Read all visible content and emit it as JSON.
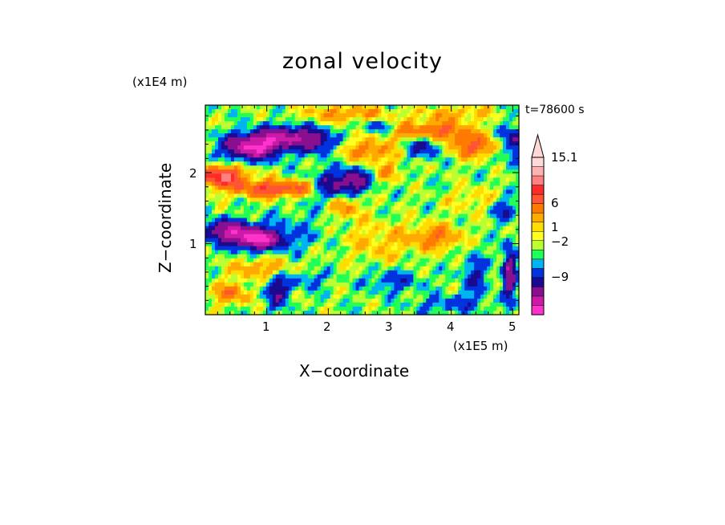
{
  "chart_data": {
    "type": "heatmap",
    "title": "zonal velocity",
    "xlabel": "X−coordinate",
    "ylabel": "Z−coordinate",
    "x_unit": "(x1E5 m)",
    "y_unit": "(x1E4 m)",
    "time_label": "t=78600 s",
    "xlim": [
      0,
      5.1
    ],
    "ylim": [
      0,
      2.95
    ],
    "x_ticks": [
      1,
      2,
      3,
      4,
      5
    ],
    "y_ticks": [
      1,
      2
    ],
    "x_tick_labels": [
      "1",
      "2",
      "3",
      "4",
      "5"
    ],
    "y_tick_labels": [
      "1",
      "2"
    ],
    "colorbar": {
      "levels": [
        "15.1",
        "6",
        "1",
        "−2",
        "−9"
      ],
      "labeled_values": [
        15.1,
        6,
        1,
        -2,
        -9
      ],
      "colors": [
        "#ff33cc",
        "#cc1aa8",
        "#88108f",
        "#1a0a8f",
        "#0033dd",
        "#00b4f0",
        "#22ff55",
        "#bbff33",
        "#ffff22",
        "#ffdd00",
        "#ffaa00",
        "#ff7a00",
        "#ff5533",
        "#ff2a2a",
        "#ff8080",
        "#ffb0b0",
        "#ffd8d8"
      ],
      "extend_top": true
    },
    "palette": {
      "strong_negative": "#1a0a8f",
      "negative": "#0033dd",
      "weak_negative": "#00b4f0",
      "near_zero": "#22ff55",
      "weak_positive": "#ffff22",
      "positive": "#ffaa00",
      "strong_positive": "#ff2a2a"
    }
  }
}
